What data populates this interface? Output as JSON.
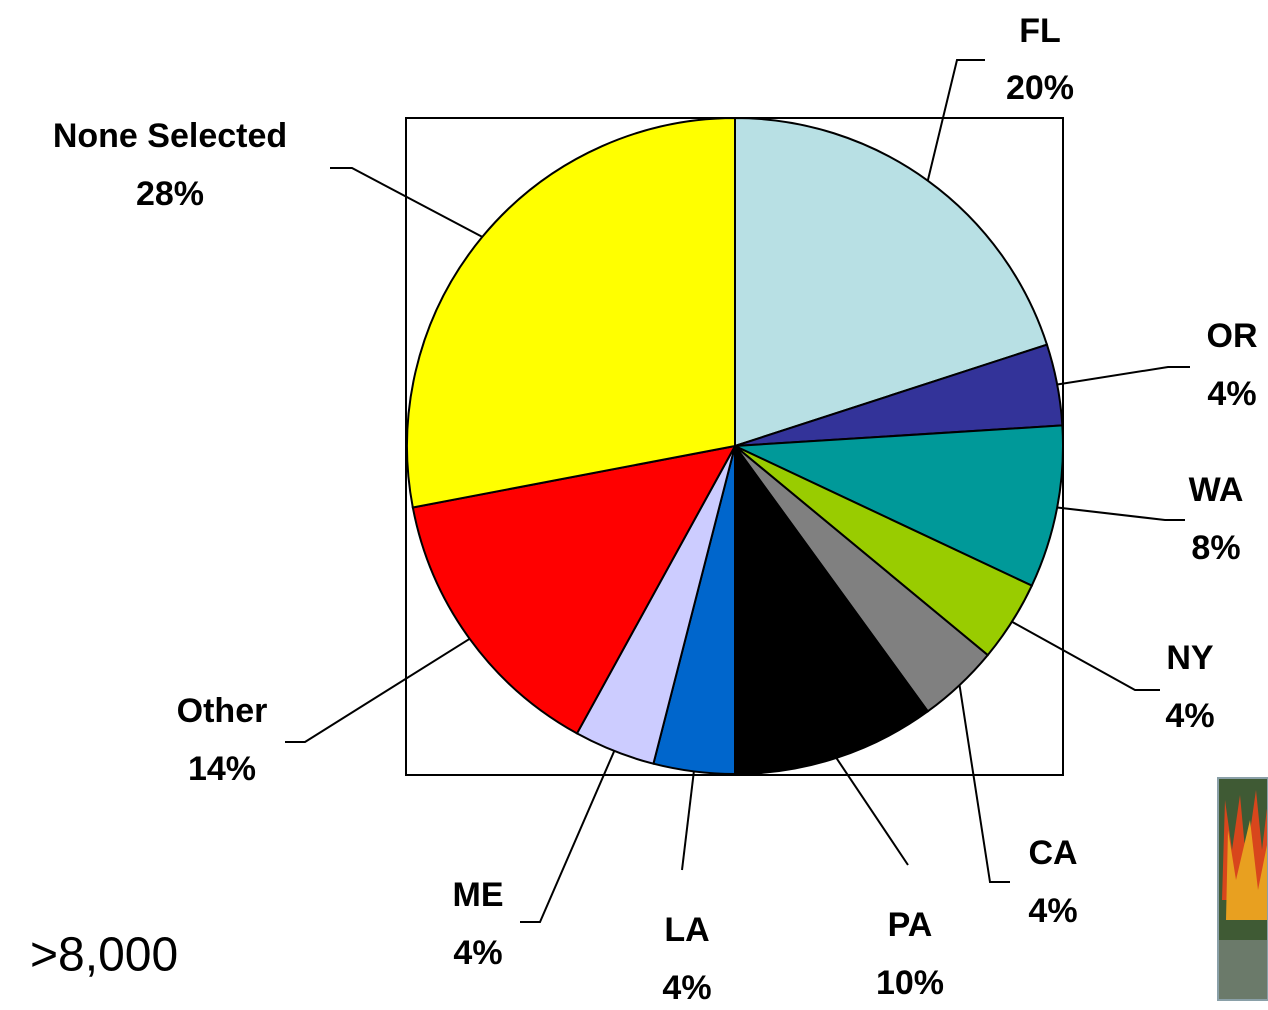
{
  "chart_data": {
    "type": "pie",
    "categories": [
      "FL",
      "OR",
      "WA",
      "NY",
      "CA",
      "PA",
      "LA",
      "ME",
      "Other",
      "None Selected"
    ],
    "values": [
      20,
      4,
      8,
      4,
      4,
      10,
      4,
      4,
      14,
      28
    ],
    "value_labels": [
      "20%",
      "4%",
      "8%",
      "4%",
      "4%",
      "10%",
      "4%",
      "4%",
      "14%",
      "28%"
    ],
    "colors": [
      "#B8E0E4",
      "#333399",
      "#009999",
      "#99CC00",
      "#808080",
      "#000000",
      "#0066CC",
      "#CCCCFF",
      "#FF0000",
      "#FFFF00"
    ],
    "annotation": ">8,000"
  }
}
